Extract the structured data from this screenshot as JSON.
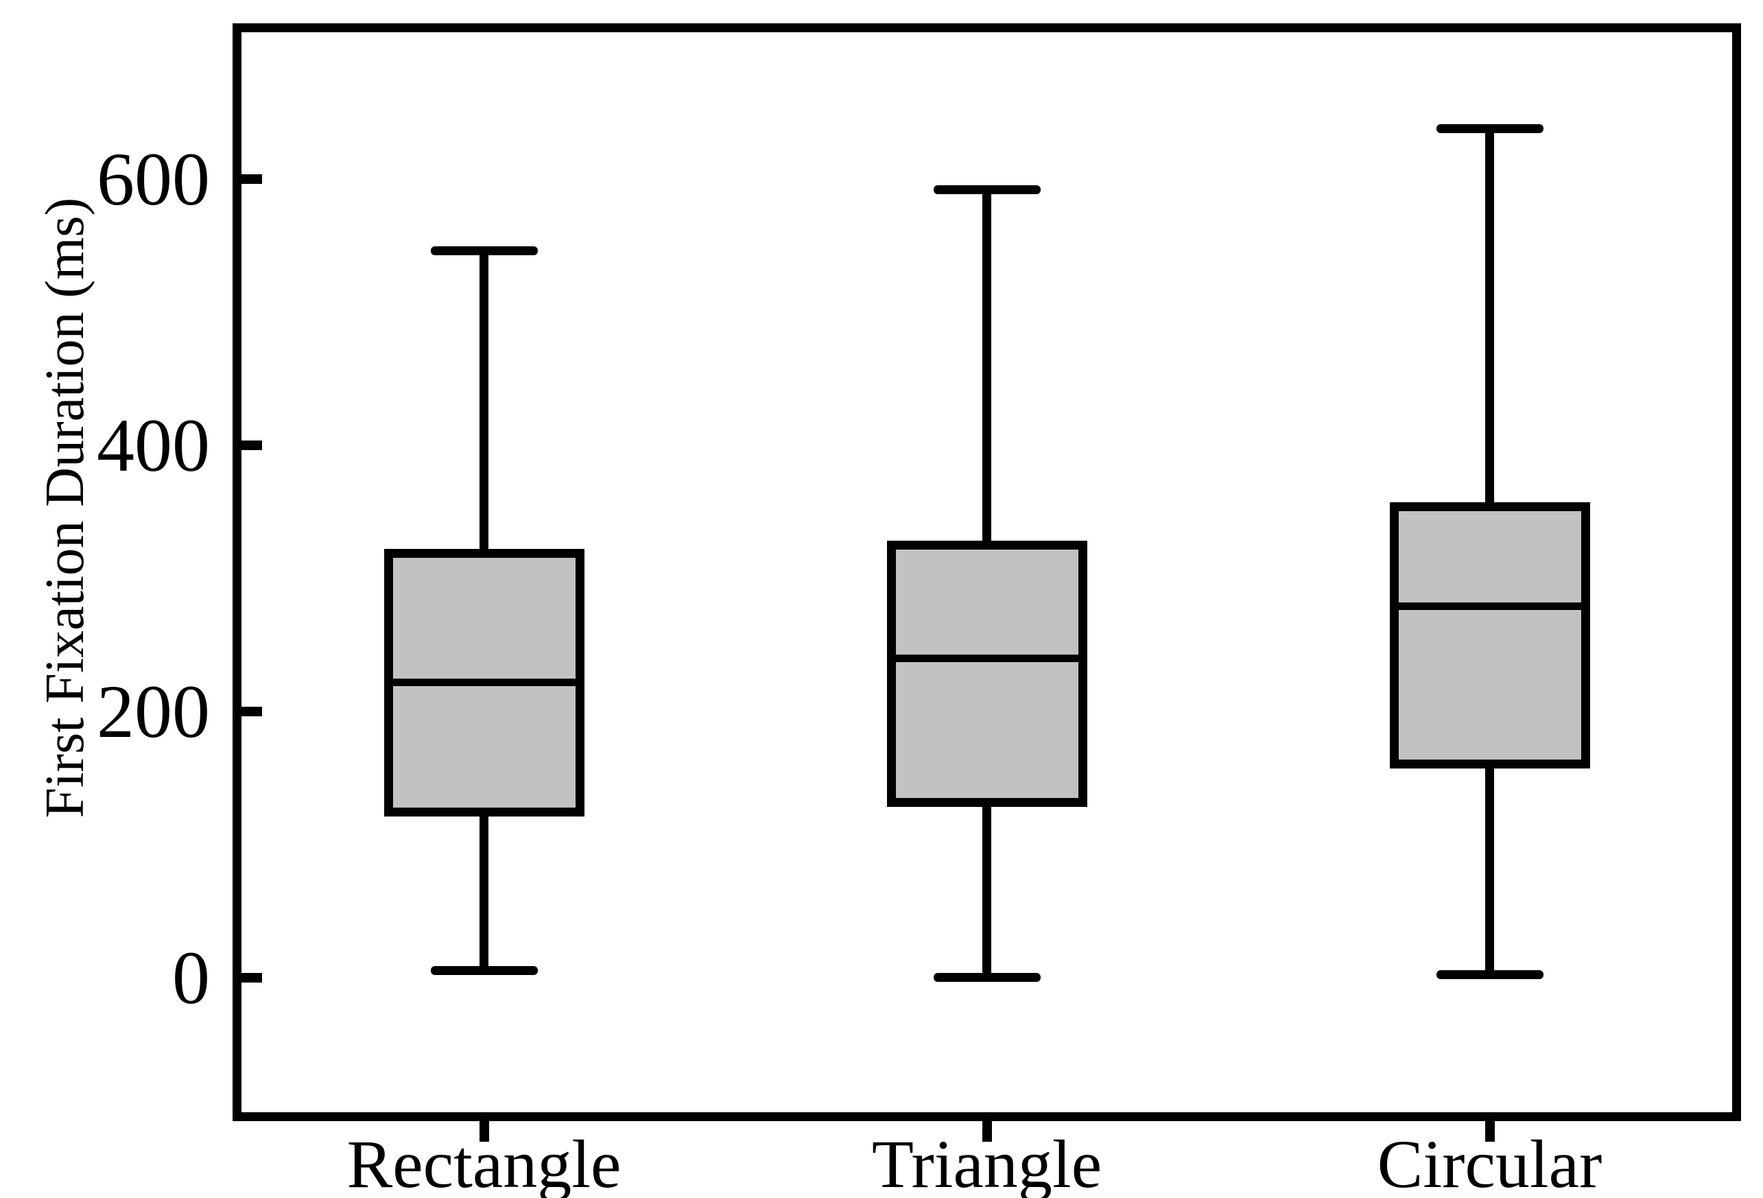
{
  "chart_data": {
    "type": "box",
    "title": "",
    "xlabel": "",
    "ylabel": "First Fixation Duration (ms)",
    "categories": [
      "Rectangle",
      "Triangle",
      "Circular"
    ],
    "y_ticks": [
      0,
      200,
      400,
      600
    ],
    "ylim": [
      -108,
      717
    ],
    "grid": false,
    "legend": "none",
    "boxes": [
      {
        "name": "Rectangle",
        "whisker_low": 5,
        "q1": 121,
        "median": 222,
        "q3": 322,
        "whisker_high": 546
      },
      {
        "name": "Triangle",
        "whisker_low": 0,
        "q1": 128,
        "median": 240,
        "q3": 328,
        "whisker_high": 592
      },
      {
        "name": "Circular",
        "whisker_low": 2,
        "q1": 157,
        "median": 279,
        "q3": 357,
        "whisker_high": 638
      }
    ],
    "colors": {
      "box_fill": "#c2c2c2",
      "line": "#000000",
      "background": "#ffffff"
    }
  }
}
